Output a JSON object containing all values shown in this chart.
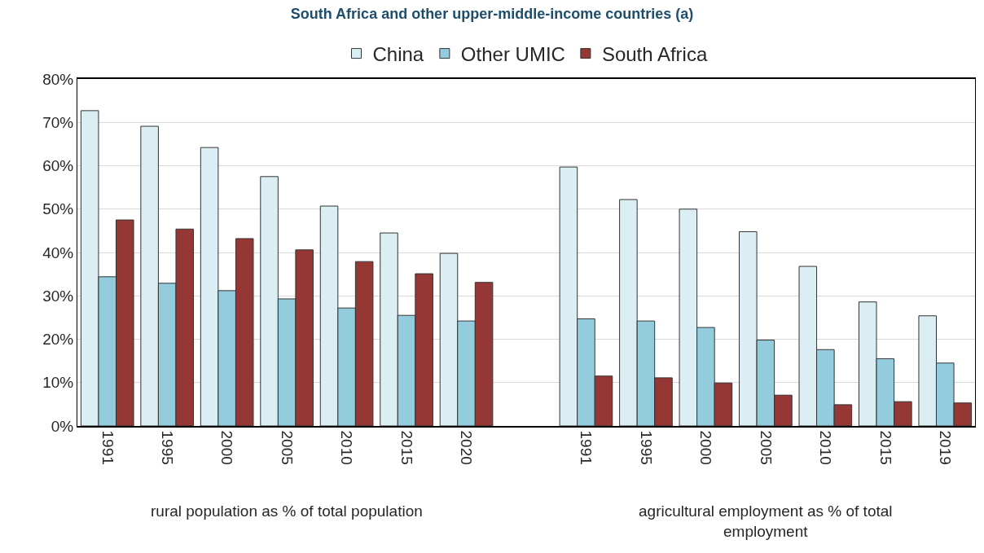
{
  "chart_data": {
    "type": "bar",
    "title": "South Africa and other upper-middle-income countries (a)",
    "categories": [
      "1991",
      "1995",
      "2000",
      "2005",
      "2010",
      "2015",
      "2020",
      null,
      "1991",
      "1995",
      "2000",
      "2005",
      "2010",
      "2015",
      "2019"
    ],
    "series": [
      {
        "name": "China",
        "color": "#dbeef4",
        "values": [
          72.7,
          69.1,
          64.2,
          57.5,
          50.7,
          44.5,
          39.8,
          null,
          59.7,
          52.2,
          50.0,
          44.8,
          36.8,
          28.6,
          25.4
        ]
      },
      {
        "name": "Other UMIC",
        "color": "#93cddd",
        "values": [
          34.4,
          32.9,
          31.2,
          29.3,
          27.2,
          25.5,
          24.2,
          null,
          24.7,
          24.2,
          22.7,
          19.8,
          17.6,
          15.5,
          14.5
        ]
      },
      {
        "name": "South Africa",
        "color": "#953735",
        "values": [
          47.5,
          45.4,
          43.2,
          40.6,
          37.9,
          35.1,
          33.1,
          null,
          11.5,
          11.1,
          9.9,
          7.1,
          4.9,
          5.6,
          5.3
        ]
      }
    ],
    "annotations": [
      "rural population as % of total population",
      "agricultural employment as % of total employment"
    ],
    "ylim": [
      0,
      80
    ],
    "yticks": [
      {
        "value": 0,
        "label": "0%"
      },
      {
        "value": 10,
        "label": "10%"
      },
      {
        "value": 20,
        "label": "20%"
      },
      {
        "value": 30,
        "label": "30%"
      },
      {
        "value": 40,
        "label": "40%"
      },
      {
        "value": 50,
        "label": "50%"
      },
      {
        "value": 60,
        "label": "60%"
      },
      {
        "value": 70,
        "label": "70%"
      },
      {
        "value": 80,
        "label": "80%"
      }
    ],
    "grid": "y",
    "legend": "top"
  }
}
